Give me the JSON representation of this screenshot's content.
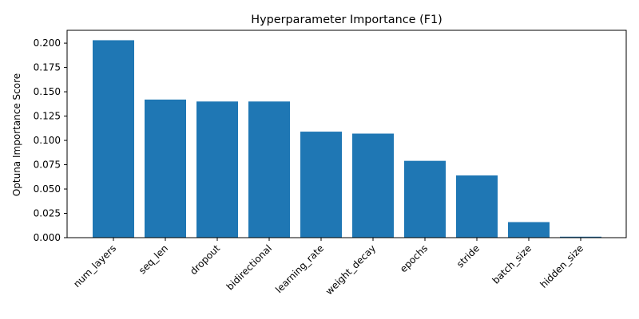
{
  "chart_data": {
    "type": "bar",
    "title": "Hyperparameter Importance (F1)",
    "xlabel": "",
    "ylabel": "Optuna Importance Score",
    "categories": [
      "num_layers",
      "seq_len",
      "dropout",
      "bidirectional",
      "learning_rate",
      "weight_decay",
      "epochs",
      "stride",
      "batch_size",
      "hidden_size"
    ],
    "values": [
      0.203,
      0.142,
      0.14,
      0.14,
      0.109,
      0.107,
      0.079,
      0.064,
      0.016,
      0.001
    ],
    "ylim": [
      0,
      0.2132
    ],
    "yticks": [
      "0.000",
      "0.025",
      "0.050",
      "0.075",
      "0.100",
      "0.125",
      "0.150",
      "0.175",
      "0.200"
    ],
    "bar_color": "#1f77b4",
    "grid": false,
    "legend": "none"
  }
}
